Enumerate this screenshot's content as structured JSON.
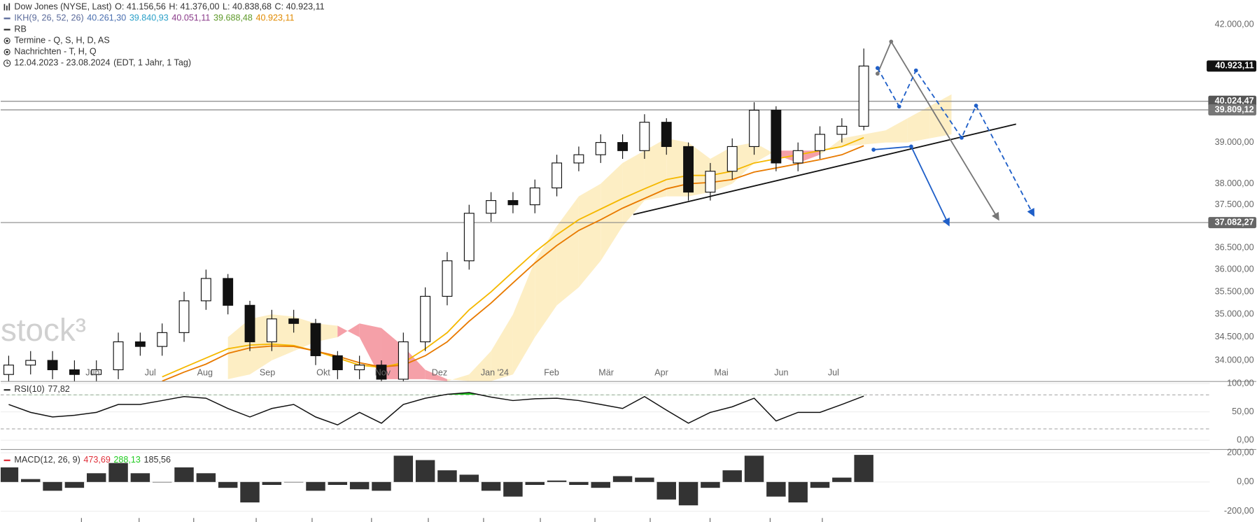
{
  "header": {
    "title": "Dow Jones (NYSE, Last)",
    "quote": [
      "O: 41.156,56",
      "H: 41.376,00",
      "L: 40.838,68",
      "C: 40.923,11"
    ],
    "indicator": {
      "name": "IKH(9, 26, 52, 26)",
      "color": "#5a6a9a",
      "values": [
        {
          "text": "40.261,30",
          "color": "#4a6fb0"
        },
        {
          "text": "39.840,93",
          "color": "#2aa0c8"
        },
        {
          "text": "40.051,11",
          "color": "#8a3a8a"
        },
        {
          "text": "39.688,48",
          "color": "#5f9a2a"
        },
        {
          "text": "40.923,11",
          "color": "#e08a00"
        }
      ]
    },
    "items": [
      "RB",
      "Termine  - Q, S, H, D, AS",
      "Nachrichten  - T, H, Q"
    ],
    "range": "12.04.2023 - 23.08.2024",
    "range_note": "(EDT, 1 Jahr, 1 Tag)",
    "watermark": "stock³"
  },
  "chart_data": [
    {
      "type": "candlestick",
      "log": true,
      "up_color": "#ffffff",
      "down_color": "#111111",
      "ylim": [
        33560,
        42660
      ],
      "yticks": [
        {
          "value": 42000,
          "label": "42.000,00"
        },
        {
          "value": 39000,
          "label": "39.000,00"
        },
        {
          "value": 38000,
          "label": "38.000,00"
        },
        {
          "value": 37500,
          "label": "37.500,00"
        },
        {
          "value": 36500,
          "label": "36.500,00"
        },
        {
          "value": 36000,
          "label": "36.000,00"
        },
        {
          "value": 35500,
          "label": "35.500,00"
        },
        {
          "value": 35000,
          "label": "35.000,00"
        },
        {
          "value": 34500,
          "label": "34.500,00"
        },
        {
          "value": 34000,
          "label": "34.000,00"
        }
      ],
      "xticks": [
        {
          "value": 3.83,
          "label": "Jun"
        },
        {
          "value": 6.46,
          "label": "Jul"
        },
        {
          "value": 8.95,
          "label": "Aug"
        },
        {
          "value": 11.8,
          "label": "Sep"
        },
        {
          "value": 14.35,
          "label": "Okt"
        },
        {
          "value": 17.06,
          "label": "Nov"
        },
        {
          "value": 19.65,
          "label": "Dez"
        },
        {
          "value": 22.17,
          "label": "Jan '24"
        },
        {
          "value": 24.76,
          "label": "Feb"
        },
        {
          "value": 27.25,
          "label": "Mär"
        },
        {
          "value": 29.77,
          "label": "Apr"
        },
        {
          "value": 32.5,
          "label": "Mai"
        },
        {
          "value": 35.24,
          "label": "Jun"
        },
        {
          "value": 37.62,
          "label": "Jul"
        }
      ],
      "open": [
        33700,
        33900,
        34000,
        33800,
        33700,
        33800,
        34400,
        34300,
        34600,
        35300,
        35800,
        35200,
        34400,
        34900,
        34800,
        34100,
        33800,
        33900,
        33600,
        34400,
        35400,
        36200,
        37300,
        37600,
        37500,
        37900,
        38500,
        38700,
        39000,
        38800,
        39500,
        38900,
        37800,
        38300,
        38900,
        39800,
        38500,
        38800,
        39200,
        39400,
        null,
        null,
        null,
        null
      ],
      "high": [
        34100,
        34200,
        34200,
        34000,
        34000,
        34600,
        34600,
        34800,
        35500,
        36000,
        35900,
        35300,
        35100,
        35100,
        34900,
        34200,
        34100,
        34000,
        34600,
        35600,
        36400,
        37500,
        37800,
        37800,
        38100,
        38700,
        38900,
        39200,
        39200,
        39700,
        39600,
        39000,
        38500,
        39100,
        40000,
        39900,
        39000,
        39400,
        39600,
        41376,
        null,
        null,
        null,
        null
      ],
      "low": [
        33500,
        33700,
        33600,
        33500,
        33500,
        33600,
        34100,
        34100,
        34400,
        35100,
        35000,
        34200,
        34200,
        34600,
        33900,
        33600,
        33600,
        33400,
        33400,
        34200,
        35200,
        36000,
        37100,
        37300,
        37300,
        37700,
        38300,
        38500,
        38600,
        38600,
        38700,
        37600,
        37600,
        38100,
        38700,
        38300,
        38300,
        38600,
        39000,
        39300,
        null,
        null,
        null,
        null
      ],
      "close": [
        33900,
        34000,
        33800,
        33700,
        33800,
        34400,
        34300,
        34600,
        35300,
        35800,
        35200,
        34400,
        34900,
        34800,
        34100,
        33800,
        33900,
        33600,
        34400,
        35400,
        36200,
        37300,
        37600,
        37500,
        37900,
        38500,
        38700,
        39000,
        38800,
        39500,
        38900,
        37800,
        38300,
        38900,
        39800,
        38500,
        38800,
        39200,
        39400,
        40923.11,
        null,
        null,
        null,
        null
      ],
      "lines": [
        {
          "color": "#f5b800",
          "values": [
            null,
            null,
            null,
            null,
            null,
            null,
            null,
            33650,
            33850,
            34050,
            34250,
            34330,
            34350,
            34320,
            34200,
            34050,
            33900,
            33850,
            33950,
            34250,
            34600,
            35100,
            35500,
            35950,
            36400,
            36800,
            37150,
            37400,
            37650,
            37880,
            38100,
            38200,
            38200,
            38300,
            38500,
            38600,
            38700,
            38800,
            38900,
            39120,
            null,
            null,
            null,
            null
          ]
        },
        {
          "color": "#e87a00",
          "values": [
            null,
            null,
            null,
            null,
            null,
            null,
            null,
            33560,
            33750,
            33920,
            34150,
            34270,
            34310,
            34300,
            34200,
            34090,
            33950,
            33860,
            33900,
            34100,
            34400,
            34850,
            35250,
            35700,
            36150,
            36550,
            36900,
            37150,
            37420,
            37650,
            37880,
            38000,
            38030,
            38100,
            38280,
            38380,
            38480,
            38580,
            38700,
            38920,
            null,
            null,
            null,
            null
          ]
        }
      ],
      "cloud": {
        "bull_color": "#fdeec4",
        "bear_color": "#f5a0a8",
        "span_a": [
          null,
          null,
          null,
          null,
          null,
          null,
          null,
          null,
          null,
          null,
          34500,
          34900,
          35000,
          34950,
          34800,
          34750,
          34500,
          33600,
          33600,
          33600,
          33560,
          33700,
          34200,
          35000,
          36200,
          37000,
          37700,
          38000,
          38500,
          38800,
          39100,
          39000,
          38600,
          38900,
          39000,
          38700,
          38500,
          38700,
          39100,
          39200,
          39300,
          39600,
          39900,
          40200
        ],
        "span_b": [
          null,
          null,
          null,
          null,
          null,
          null,
          null,
          null,
          null,
          null,
          33600,
          33700,
          34000,
          34200,
          34400,
          34500,
          34800,
          34700,
          34300,
          33800,
          33600,
          33560,
          33560,
          33700,
          34500,
          35200,
          35600,
          36200,
          37000,
          37600,
          37700,
          37700,
          37800,
          38000,
          38500,
          38800,
          38800,
          38800,
          38900,
          38950,
          39000,
          39000,
          39100,
          39200
        ]
      },
      "levels": [
        {
          "value": 40024.47,
          "label": "40.024,47",
          "color": "#555555"
        },
        {
          "value": 39809.12,
          "label": "39.809,12",
          "color": "#777777"
        },
        {
          "value": 37082.27,
          "label": "37.082,27",
          "color": "#666666"
        }
      ],
      "last_price": {
        "value": 40923.11,
        "label": "40.923,11"
      }
    },
    {
      "type": "line",
      "title": "RSI(10)",
      "last_value": "77,82",
      "color": "#111111",
      "fill_color": "#22cc22",
      "ylim": [
        -15.7,
        101.4
      ],
      "yticks": [
        {
          "value": 100,
          "label": "100,00"
        },
        {
          "value": 50,
          "label": "50,00"
        },
        {
          "value": 0,
          "label": "0,00"
        }
      ],
      "levels": [
        80,
        20
      ],
      "values": [
        63,
        49,
        41,
        44,
        49,
        63,
        63,
        70,
        77,
        74,
        56,
        41,
        56,
        63,
        41,
        27,
        49,
        30,
        63,
        74,
        81,
        84,
        76,
        70,
        73,
        74,
        70,
        63,
        56,
        77,
        53,
        30,
        49,
        59,
        74,
        34,
        49,
        49,
        63,
        77.82,
        null,
        null,
        null,
        null
      ]
    },
    {
      "type": "bar",
      "title": "MACD(12, 26, 9)",
      "color": "#333333",
      "legend": [
        {
          "text": "473,69",
          "color": "#e0303a"
        },
        {
          "text": "288,13",
          "color": "#22cc22"
        },
        {
          "text": "185,56",
          "color": "#333333"
        }
      ],
      "ylim": [
        -274,
        214
      ],
      "yticks": [
        {
          "value": 200,
          "label": "200,00"
        },
        {
          "value": 0,
          "label": "0,00"
        },
        {
          "value": -200,
          "label": "-200,00"
        }
      ],
      "values": [
        100,
        20,
        -60,
        -40,
        60,
        130,
        60,
        0,
        100,
        60,
        -40,
        -140,
        -20,
        0,
        -60,
        -20,
        -50,
        -60,
        180,
        150,
        80,
        50,
        -60,
        -100,
        -20,
        10,
        -20,
        -40,
        40,
        30,
        -120,
        -160,
        -40,
        80,
        180,
        -100,
        -140,
        -40,
        30,
        185.56,
        null,
        null,
        null,
        null
      ]
    }
  ]
}
